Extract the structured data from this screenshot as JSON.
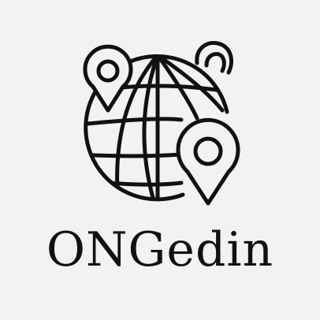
{
  "brand": {
    "name": "ONGedin",
    "ink_color": "#111111",
    "background_color": "#f2f2f2"
  },
  "logo": {
    "icons": [
      "globe-icon",
      "map-pin-icon",
      "map-pin-icon",
      "bear-ear-icon"
    ]
  }
}
